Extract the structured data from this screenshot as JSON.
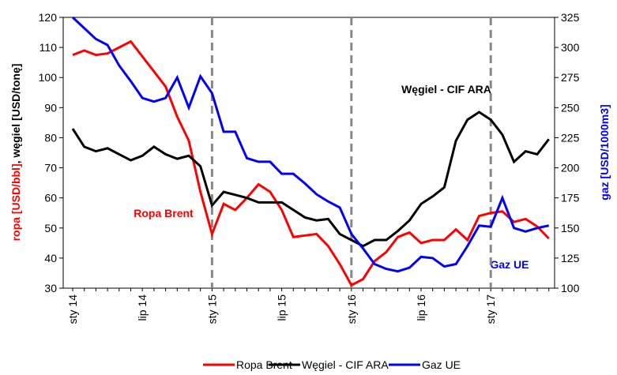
{
  "chart_data": {
    "type": "line",
    "categories": [
      "sty 14",
      null,
      null,
      null,
      null,
      null,
      "lip 14",
      null,
      null,
      null,
      null,
      null,
      "sty 15",
      null,
      null,
      null,
      null,
      null,
      "lip 15",
      null,
      null,
      null,
      null,
      null,
      "sty 16",
      null,
      null,
      null,
      null,
      null,
      "lip 16",
      null,
      null,
      null,
      null,
      null,
      "sty 17",
      null,
      null,
      null,
      null,
      null
    ],
    "series": [
      {
        "name": "Ropa Brent",
        "color": "#ff0000",
        "values": [
          107.5,
          109,
          107.5,
          108,
          110,
          112,
          107,
          102,
          97,
          87,
          79,
          62,
          48,
          58,
          56,
          60,
          64.5,
          62,
          56,
          47,
          47.5,
          48,
          44,
          38,
          31,
          33,
          39,
          42,
          47,
          48.5,
          45,
          46,
          46,
          49.5,
          46,
          54,
          55,
          55.5,
          52,
          53,
          50.5,
          46.5
        ]
      },
      {
        "name": "Węgiel - CIF ARA",
        "color": "#000000",
        "values": [
          83,
          77,
          75.5,
          76.5,
          74.5,
          72.5,
          74,
          77,
          74.5,
          73,
          74,
          70.5,
          57.5,
          62,
          61,
          60,
          58.5,
          58.5,
          58.5,
          56,
          53.5,
          52.5,
          53,
          48,
          46,
          44,
          46,
          46,
          49,
          52.5,
          58,
          60.5,
          63.5,
          79,
          86,
          88.5,
          86,
          81,
          72,
          75.5,
          74.5,
          79.5
        ]
      },
      {
        "name": "Gaz UE",
        "color": "#0000ff",
        "axis": "y2",
        "values": [
          325,
          316,
          307,
          302,
          285,
          272,
          258,
          255,
          258,
          275,
          250,
          276,
          262,
          230,
          230,
          208,
          205,
          205,
          195,
          195,
          187,
          178,
          172,
          167,
          145,
          133,
          120,
          116,
          114,
          117,
          126,
          125,
          118,
          120,
          135,
          152,
          151,
          175,
          150,
          147,
          150,
          152
        ]
      }
    ],
    "ylim": [
      30,
      120
    ],
    "yticks": [
      30,
      40,
      50,
      60,
      70,
      80,
      90,
      100,
      110,
      120
    ],
    "y2lim": [
      100,
      325
    ],
    "y2ticks": [
      100,
      125,
      150,
      175,
      200,
      225,
      250,
      275,
      300,
      325
    ],
    "ylabel": [
      "ropa [USD/bbl]",
      ", węgiel [USD/tonę]"
    ],
    "y2label": "gaz [USD/1000m3]",
    "annotations": [
      "Węgiel - CIF ARA",
      "Ropa Brent",
      "Gaz UE"
    ],
    "legend": "bottom"
  }
}
